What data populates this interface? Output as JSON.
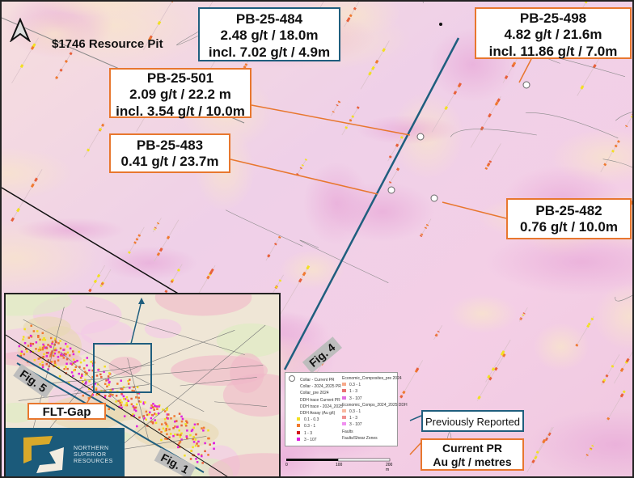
{
  "map_title": "$1746 Resource Pit",
  "north_arrow": "north-arrow-icon",
  "callouts": [
    {
      "hole": "PB-25-484",
      "line1": "2.48 g/t  / 18.0m",
      "line2": "incl. 7.02 g/t / 4.9m",
      "style": "previously-reported"
    },
    {
      "hole": "PB-25-498",
      "line1": "4.82 g/t / 21.6m",
      "line2": "incl. 11.86 g/t / 7.0m",
      "style": "current"
    },
    {
      "hole": "PB-25-501",
      "line1": "2.09 g/t / 22.2 m",
      "line2": "incl. 3.54 g/t / 10.0m",
      "style": "current"
    },
    {
      "hole": "PB-25-483",
      "line1": "0.41 g/t / 23.7m",
      "style": "current"
    },
    {
      "hole": "PB-25-482",
      "line1": "0.76 g/t / 10.0m",
      "style": "current"
    }
  ],
  "figure_labels": {
    "fig4": "Fig. 4",
    "fig5": "Fig. 5",
    "fig1": "Fig. 1"
  },
  "inset": {
    "zone_label": "FLT-Gap",
    "logo_text": [
      "NORTHERN",
      "SUPERIOR",
      "RESOURCES"
    ]
  },
  "key": {
    "previously_reported": "Previously Reported",
    "current_pr_line1": "Current PR",
    "current_pr_line2": "Au g/t / metres"
  },
  "legend": {
    "left": [
      "Collar - Current PR",
      "Collar - 2024_2025 PR",
      "Collar_pre 2024",
      "DDH trace Current PR",
      "DDH trace - 2024_2025",
      "DDH Assay (Au g/t)",
      "0.1 - 0.3",
      "0.3 - 1",
      "1 - 3",
      "3 - 107"
    ],
    "right": [
      "Economic_Composites_pre 2024",
      "0.3 - 1",
      "1 - 3",
      "3 - 107",
      "Economic_Comps_2024_2025 DDH",
      "0.3 - 1",
      "1 - 3",
      "3 - 107",
      "Faults",
      "Faults/Shear Zones"
    ],
    "scale": [
      "0",
      "100",
      "200 m"
    ]
  },
  "colors": {
    "orange": "#e8772e",
    "blue": "#1f5e7e",
    "logo_bg": "#1b5a7a",
    "logo_gold": "#d9a92a"
  }
}
